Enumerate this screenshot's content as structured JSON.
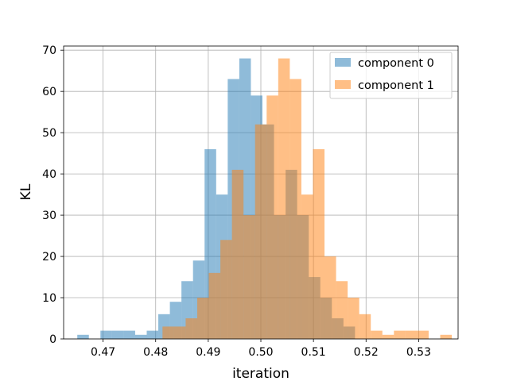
{
  "chart_data": {
    "type": "histogram",
    "title": "",
    "xlabel": "iteration",
    "ylabel": "KL",
    "xlim": [
      0.4625,
      0.5375
    ],
    "ylim": [
      0,
      71
    ],
    "xticks": [
      0.47,
      0.48,
      0.49,
      0.5,
      0.51,
      0.52,
      0.53
    ],
    "yticks": [
      0,
      10,
      20,
      30,
      40,
      50,
      60,
      70
    ],
    "grid": true,
    "legend_position": "top-right",
    "series": [
      {
        "name": "component 0",
        "color": "#1f77b4",
        "alpha": 0.5,
        "bin_edges": [
          0.4651,
          0.4673,
          0.4695,
          0.4717,
          0.4739,
          0.4761,
          0.4783,
          0.4805,
          0.4827,
          0.4849,
          0.4871,
          0.4893,
          0.4915,
          0.4937,
          0.4959,
          0.4981,
          0.5003,
          0.5025,
          0.5047,
          0.5069,
          0.5091,
          0.5113,
          0.5135,
          0.5157,
          0.5179
        ],
        "counts": [
          1,
          0,
          2,
          2,
          2,
          1,
          2,
          6,
          9,
          14,
          19,
          46,
          35,
          63,
          68,
          59,
          52,
          30,
          41,
          30,
          15,
          10,
          5,
          3
        ]
      },
      {
        "name": "component 1",
        "color": "#ff7f0e",
        "alpha": 0.5,
        "bin_edges": [
          0.4813,
          0.4835,
          0.4857,
          0.4879,
          0.4901,
          0.4923,
          0.4945,
          0.4967,
          0.4989,
          0.5011,
          0.5033,
          0.5055,
          0.5077,
          0.5099,
          0.5121,
          0.5143,
          0.5165,
          0.5187,
          0.5209,
          0.5231,
          0.5253,
          0.5275,
          0.5297,
          0.5319,
          0.5341,
          0.5363
        ],
        "counts": [
          3,
          3,
          5,
          10,
          16,
          24,
          41,
          30,
          52,
          59,
          68,
          63,
          35,
          46,
          20,
          14,
          10,
          6,
          2,
          1,
          2,
          2,
          2,
          0,
          1
        ]
      }
    ]
  }
}
